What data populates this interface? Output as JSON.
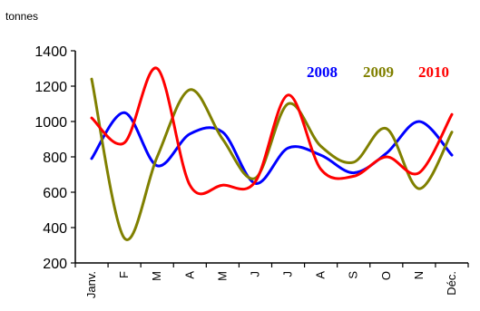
{
  "chart_data": {
    "type": "line",
    "ylabel": "tonnes",
    "ylim": [
      200,
      1400
    ],
    "yticks": [
      200,
      400,
      600,
      800,
      1000,
      1200,
      1400
    ],
    "categories": [
      "Janv.",
      "F",
      "M",
      "A",
      "M",
      "J",
      "J",
      "A",
      "S",
      "O",
      "N",
      "Déc."
    ],
    "grid": false,
    "legend_position": "top-right",
    "series": [
      {
        "name": "2008",
        "color": "#0000ff",
        "values": [
          790,
          1050,
          750,
          930,
          940,
          650,
          850,
          810,
          710,
          820,
          1000,
          810
        ]
      },
      {
        "name": "2009",
        "color": "#808000",
        "values": [
          1240,
          340,
          800,
          1180,
          900,
          680,
          1100,
          860,
          770,
          960,
          620,
          940
        ]
      },
      {
        "name": "2010",
        "color": "#ff0000",
        "values": [
          1020,
          880,
          1300,
          640,
          640,
          660,
          1150,
          730,
          690,
          800,
          710,
          1040
        ]
      }
    ]
  }
}
